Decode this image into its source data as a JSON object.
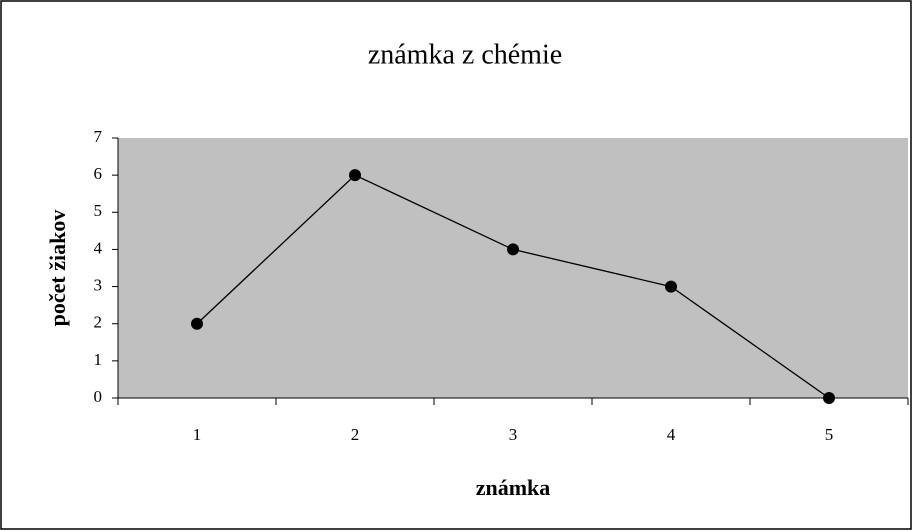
{
  "chart_data": {
    "type": "line",
    "title": "známka z chémie",
    "x_label": "známka",
    "y_label": "počet žiakov",
    "categories": [
      "1",
      "2",
      "3",
      "4",
      "5"
    ],
    "values": [
      2,
      6,
      4,
      3,
      0
    ],
    "color": "#000000",
    "plot_background": "#c0c0c0",
    "ylim": [
      0,
      7
    ],
    "yticks": [
      0,
      1,
      2,
      3,
      4,
      5,
      6,
      7
    ],
    "grid": false
  }
}
